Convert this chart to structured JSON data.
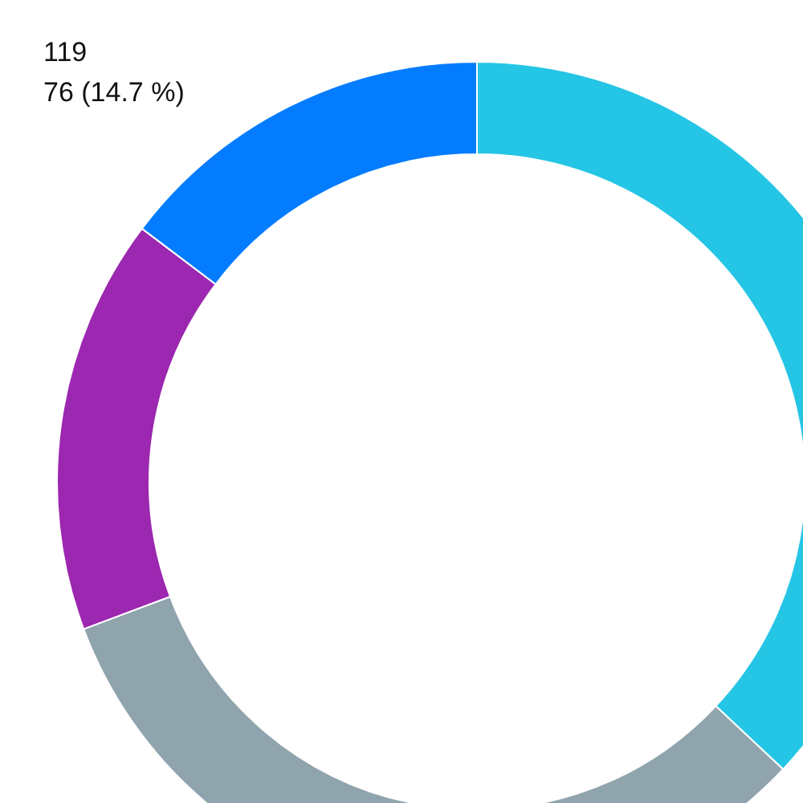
{
  "chart_data": {
    "type": "donut",
    "categories": [
      null,
      null,
      null,
      null
    ],
    "values": [
      37,
      32.3,
      16,
      14.7
    ],
    "colors": [
      "#25c5e5",
      "#90a4ae",
      "#9c27b0",
      "#047cff"
    ],
    "legend": false,
    "annotations": [
      "119",
      "76 (14.7 %)"
    ]
  }
}
